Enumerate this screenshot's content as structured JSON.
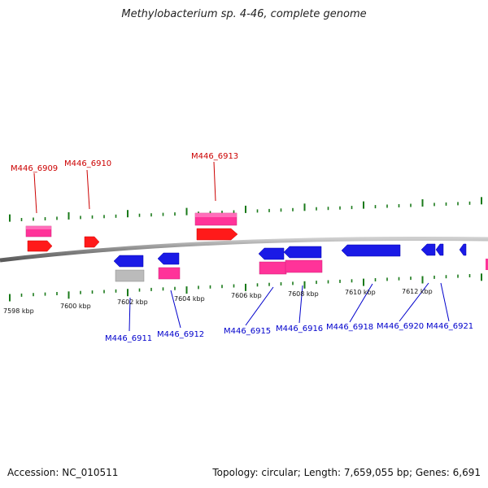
{
  "title": "Methylobacterium sp. 4-46, complete genome",
  "accession_text": "Accession: NC_010511",
  "summary_text": "Topology: circular; Length: 7,659,055 bp; Genes: 6,691",
  "colors": {
    "forward_gene": "#ff1a1a",
    "forward_highlight": "#ff3399",
    "reverse_gene": "#1a1ae6",
    "reverse_highlight": "#ff3399",
    "other_gene": "#bbbbbb",
    "tick": "#1a7a1a",
    "backbone": "#888888",
    "forward_label": "#cc0000",
    "reverse_label": "#0000cc"
  },
  "scale_labels": [
    "7598 kbp",
    "7600 kbp",
    "7602 kbp",
    "7604 kbp",
    "7606 kbp",
    "7608 kbp",
    "7610 kbp",
    "7612 kbp"
  ],
  "forward_genes": [
    {
      "id": "M446_6909"
    },
    {
      "id": "M446_6910"
    },
    {
      "id": "M446_6913"
    }
  ],
  "reverse_genes": [
    {
      "id": "M446_6911"
    },
    {
      "id": "M446_6912"
    },
    {
      "id": "M446_6915"
    },
    {
      "id": "M446_6916"
    },
    {
      "id": "M446_6918"
    },
    {
      "id": "M446_6920"
    },
    {
      "id": "M446_6921"
    }
  ]
}
